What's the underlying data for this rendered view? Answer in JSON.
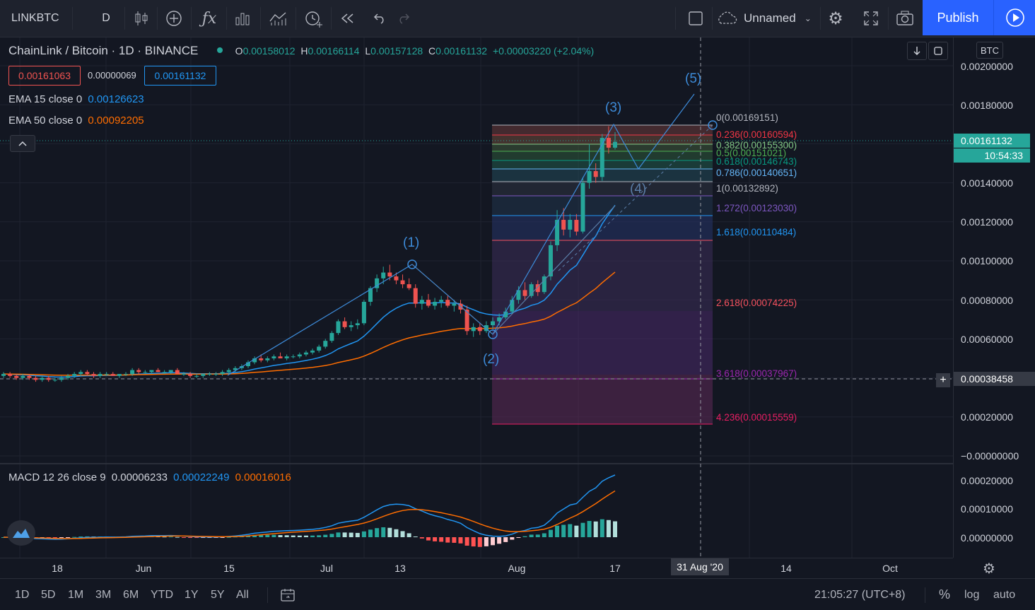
{
  "toolbar": {
    "symbol": "LINKBTC",
    "interval": "D",
    "layout_name": "Unnamed",
    "publish_label": "Publish"
  },
  "legend": {
    "title": "ChainLink / Bitcoin · 1D · BINANCE",
    "o_label": "O",
    "o_value": "0.00158012",
    "h_label": "H",
    "h_value": "0.00166114",
    "l_label": "L",
    "l_value": "0.00157128",
    "c_label": "C",
    "c_value": "0.00161132",
    "change": "+0.00003220 (+2.04%)",
    "bid": "0.00161063",
    "spread": "0.00000069",
    "ask": "0.00161132",
    "ema15_label": "EMA 15 close 0",
    "ema15_value": "0.00126623",
    "ema50_label": "EMA 50 close 0",
    "ema50_value": "0.00092205",
    "macd_label": "MACD 12 26 close 9",
    "macd_hist": "0.00006233",
    "macd_line": "0.00022249",
    "macd_signal": "0.00016016"
  },
  "price_axis": {
    "currency": "BTC",
    "ticks": [
      "0.00200000",
      "0.00180000",
      "0.00160000",
      "0.00140000",
      "0.00120000",
      "0.00100000",
      "0.00080000",
      "0.00060000",
      "0.00040000",
      "0.00020000",
      "−0.00000000"
    ],
    "last_price": "0.00161132",
    "countdown": "10:54:33",
    "crosshair_price": "0.00038458",
    "macd_ticks": [
      "0.00020000",
      "0.00010000",
      "0.00000000"
    ]
  },
  "time_axis": {
    "ticks": [
      "18",
      "Jun",
      "15",
      "Jul",
      "13",
      "Aug",
      "17",
      "14",
      "Oct"
    ],
    "crosshair_date": "31 Aug '20"
  },
  "fib_levels": [
    {
      "label": "0(0.00169151)",
      "color": "#b2b5be"
    },
    {
      "label": "0.236(0.00160594)",
      "color": "#f23645"
    },
    {
      "label": "0.382(0.00155300)",
      "color": "#81c784"
    },
    {
      "label": "0.5(0.00151021)",
      "color": "#4caf50"
    },
    {
      "label": "0.618(0.00146743)",
      "color": "#089981"
    },
    {
      "label": "0.786(0.00140651)",
      "color": "#64b5f6"
    },
    {
      "label": "1(0.00132892)",
      "color": "#b2b5be"
    },
    {
      "label": "1.272(0.00123030)",
      "color": "#7e57c2"
    },
    {
      "label": "1.618(0.00110484)",
      "color": "#2196f3"
    },
    {
      "label": "2.618(0.00074225)",
      "color": "#f7525f"
    },
    {
      "label": "3.618(0.00037967)",
      "color": "#9c27b0"
    },
    {
      "label": "4.236(0.00015559)",
      "color": "#e91e63"
    }
  ],
  "waves": [
    "(1)",
    "(2)",
    "(3)",
    "(4)",
    "(5)"
  ],
  "bottom_bar": {
    "ranges": [
      "1D",
      "5D",
      "1M",
      "3M",
      "6M",
      "YTD",
      "1Y",
      "5Y",
      "All"
    ],
    "clock": "21:05:27 (UTC+8)",
    "percent": "%",
    "log": "log",
    "auto": "auto"
  },
  "colors": {
    "up": "#26a69a",
    "down": "#ef5350",
    "ema15": "#2196f3",
    "ema50": "#ff6d00",
    "accent": "#2962ff",
    "background": "#131722"
  },
  "chart_data": {
    "type": "candlestick",
    "title": "ChainLink / Bitcoin · 1D · BINANCE",
    "ylim": [
      -4e-05,
      0.00206
    ],
    "grid": true,
    "candles": [
      [
        0.00041,
        0.00043,
        0.0004,
        0.00042
      ],
      [
        0.00042,
        0.00043,
        0.0004,
        0.00041
      ],
      [
        0.00041,
        0.00042,
        0.00039,
        0.0004
      ],
      [
        0.0004,
        0.00042,
        0.00039,
        0.00041
      ],
      [
        0.00041,
        0.00042,
        0.00039,
        0.0004
      ],
      [
        0.0004,
        0.00041,
        0.00038,
        0.00039
      ],
      [
        0.00039,
        0.00041,
        0.00038,
        0.0004
      ],
      [
        0.0004,
        0.00041,
        0.00038,
        0.00039
      ],
      [
        0.00039,
        0.0004,
        0.00038,
        0.00039
      ],
      [
        0.00039,
        0.00041,
        0.00038,
        0.0004
      ],
      [
        0.0004,
        0.00042,
        0.00039,
        0.00041
      ],
      [
        0.00041,
        0.00043,
        0.0004,
        0.00042
      ],
      [
        0.00042,
        0.00044,
        0.00041,
        0.00043
      ],
      [
        0.00043,
        0.00044,
        0.00041,
        0.00042
      ],
      [
        0.00042,
        0.00043,
        0.0004,
        0.00041
      ],
      [
        0.00041,
        0.00043,
        0.0004,
        0.00042
      ],
      [
        0.00042,
        0.00043,
        0.00041,
        0.00042
      ],
      [
        0.00042,
        0.00043,
        0.00041,
        0.00041
      ],
      [
        0.00041,
        0.00042,
        0.0004,
        0.00042
      ],
      [
        0.00042,
        0.00043,
        0.00041,
        0.00042
      ],
      [
        0.00042,
        0.00045,
        0.00041,
        0.00044
      ],
      [
        0.00044,
        0.00045,
        0.00042,
        0.00043
      ],
      [
        0.00043,
        0.00044,
        0.00042,
        0.00043
      ],
      [
        0.00043,
        0.00044,
        0.00042,
        0.00044
      ],
      [
        0.00044,
        0.00045,
        0.00043,
        0.00043
      ],
      [
        0.00043,
        0.00044,
        0.00042,
        0.00043
      ],
      [
        0.00043,
        0.00044,
        0.00042,
        0.00044
      ],
      [
        0.00044,
        0.00045,
        0.00042,
        0.00042
      ],
      [
        0.00042,
        0.00043,
        0.00041,
        0.00042
      ],
      [
        0.00042,
        0.00043,
        0.0004,
        0.00041
      ],
      [
        0.00041,
        0.00042,
        0.0004,
        0.00041
      ],
      [
        0.00041,
        0.00042,
        0.0004,
        0.00042
      ],
      [
        0.00042,
        0.00043,
        0.00041,
        0.00042
      ],
      [
        0.00042,
        0.00043,
        0.00041,
        0.00042
      ],
      [
        0.00042,
        0.00044,
        0.00041,
        0.00043
      ],
      [
        0.00043,
        0.00045,
        0.00042,
        0.00044
      ],
      [
        0.00044,
        0.00046,
        0.00043,
        0.00045
      ],
      [
        0.00045,
        0.00047,
        0.00044,
        0.00046
      ],
      [
        0.00046,
        0.00049,
        0.00045,
        0.00048
      ],
      [
        0.00048,
        0.00051,
        0.00047,
        0.0005
      ],
      [
        0.0005,
        0.00052,
        0.00048,
        0.00049
      ],
      [
        0.00049,
        0.00051,
        0.00048,
        0.0005
      ],
      [
        0.0005,
        0.00052,
        0.00049,
        0.00051
      ],
      [
        0.00051,
        0.00053,
        0.0005,
        0.0005
      ],
      [
        0.0005,
        0.00052,
        0.00049,
        0.00051
      ],
      [
        0.00051,
        0.00052,
        0.0005,
        0.00051
      ],
      [
        0.00051,
        0.00053,
        0.0005,
        0.00052
      ],
      [
        0.00052,
        0.00054,
        0.00051,
        0.00053
      ],
      [
        0.00053,
        0.00055,
        0.00052,
        0.00054
      ],
      [
        0.00054,
        0.00057,
        0.00053,
        0.00056
      ],
      [
        0.00056,
        0.0006,
        0.00055,
        0.00059
      ],
      [
        0.00059,
        0.00064,
        0.00058,
        0.00063
      ],
      [
        0.00063,
        0.0007,
        0.00062,
        0.00069
      ],
      [
        0.00069,
        0.00071,
        0.00065,
        0.00066
      ],
      [
        0.00066,
        0.00069,
        0.00064,
        0.00067
      ],
      [
        0.00067,
        0.0007,
        0.00065,
        0.00068
      ],
      [
        0.00068,
        0.0008,
        0.00067,
        0.00079
      ],
      [
        0.00079,
        0.00087,
        0.00077,
        0.00086
      ],
      [
        0.00086,
        0.00093,
        0.00084,
        0.00091
      ],
      [
        0.00091,
        0.00097,
        0.00088,
        0.00094
      ],
      [
        0.00094,
        0.00098,
        0.0009,
        0.00092
      ],
      [
        0.00092,
        0.00094,
        0.00088,
        0.0009
      ],
      [
        0.0009,
        0.00093,
        0.00086,
        0.00088
      ],
      [
        0.00088,
        0.00091,
        0.00085,
        0.00086
      ],
      [
        0.00086,
        0.00088,
        0.00076,
        0.00078
      ],
      [
        0.00078,
        0.00082,
        0.00075,
        0.0008
      ],
      [
        0.0008,
        0.00083,
        0.00076,
        0.00077
      ],
      [
        0.00077,
        0.00081,
        0.00075,
        0.00079
      ],
      [
        0.00079,
        0.00082,
        0.00076,
        0.0008
      ],
      [
        0.0008,
        0.00082,
        0.00076,
        0.00077
      ],
      [
        0.00077,
        0.0008,
        0.00074,
        0.00078
      ],
      [
        0.00078,
        0.0008,
        0.00073,
        0.00075
      ],
      [
        0.00075,
        0.00077,
        0.00062,
        0.00064
      ],
      [
        0.00064,
        0.00068,
        0.00061,
        0.00066
      ],
      [
        0.00066,
        0.00068,
        0.00062,
        0.00064
      ],
      [
        0.00064,
        0.00069,
        0.00063,
        0.00067
      ],
      [
        0.00067,
        0.00071,
        0.00065,
        0.00069
      ],
      [
        0.00069,
        0.00073,
        0.00067,
        0.00071
      ],
      [
        0.00071,
        0.00076,
        0.0007,
        0.00074
      ],
      [
        0.00074,
        0.00082,
        0.00073,
        0.0008
      ],
      [
        0.0008,
        0.00087,
        0.00078,
        0.00085
      ],
      [
        0.00085,
        0.00089,
        0.0008,
        0.00082
      ],
      [
        0.00082,
        0.00089,
        0.00081,
        0.00088
      ],
      [
        0.00088,
        0.0009,
        0.00082,
        0.00084
      ],
      [
        0.00084,
        0.00093,
        0.00083,
        0.00092
      ],
      [
        0.00092,
        0.0011,
        0.0009,
        0.00108
      ],
      [
        0.00108,
        0.00126,
        0.00105,
        0.00121
      ],
      [
        0.00121,
        0.00127,
        0.00113,
        0.00116
      ],
      [
        0.00116,
        0.00124,
        0.00112,
        0.00121
      ],
      [
        0.00121,
        0.00124,
        0.00113,
        0.00115
      ],
      [
        0.00115,
        0.00143,
        0.00114,
        0.0014
      ],
      [
        0.0014,
        0.0016,
        0.00137,
        0.00146
      ],
      [
        0.00146,
        0.0015,
        0.0014,
        0.00143
      ],
      [
        0.00143,
        0.00165,
        0.00141,
        0.00163
      ],
      [
        0.00163,
        0.00169,
        0.00155,
        0.00158
      ],
      [
        0.00158,
        0.00166,
        0.00157,
        0.00161
      ]
    ]
  }
}
